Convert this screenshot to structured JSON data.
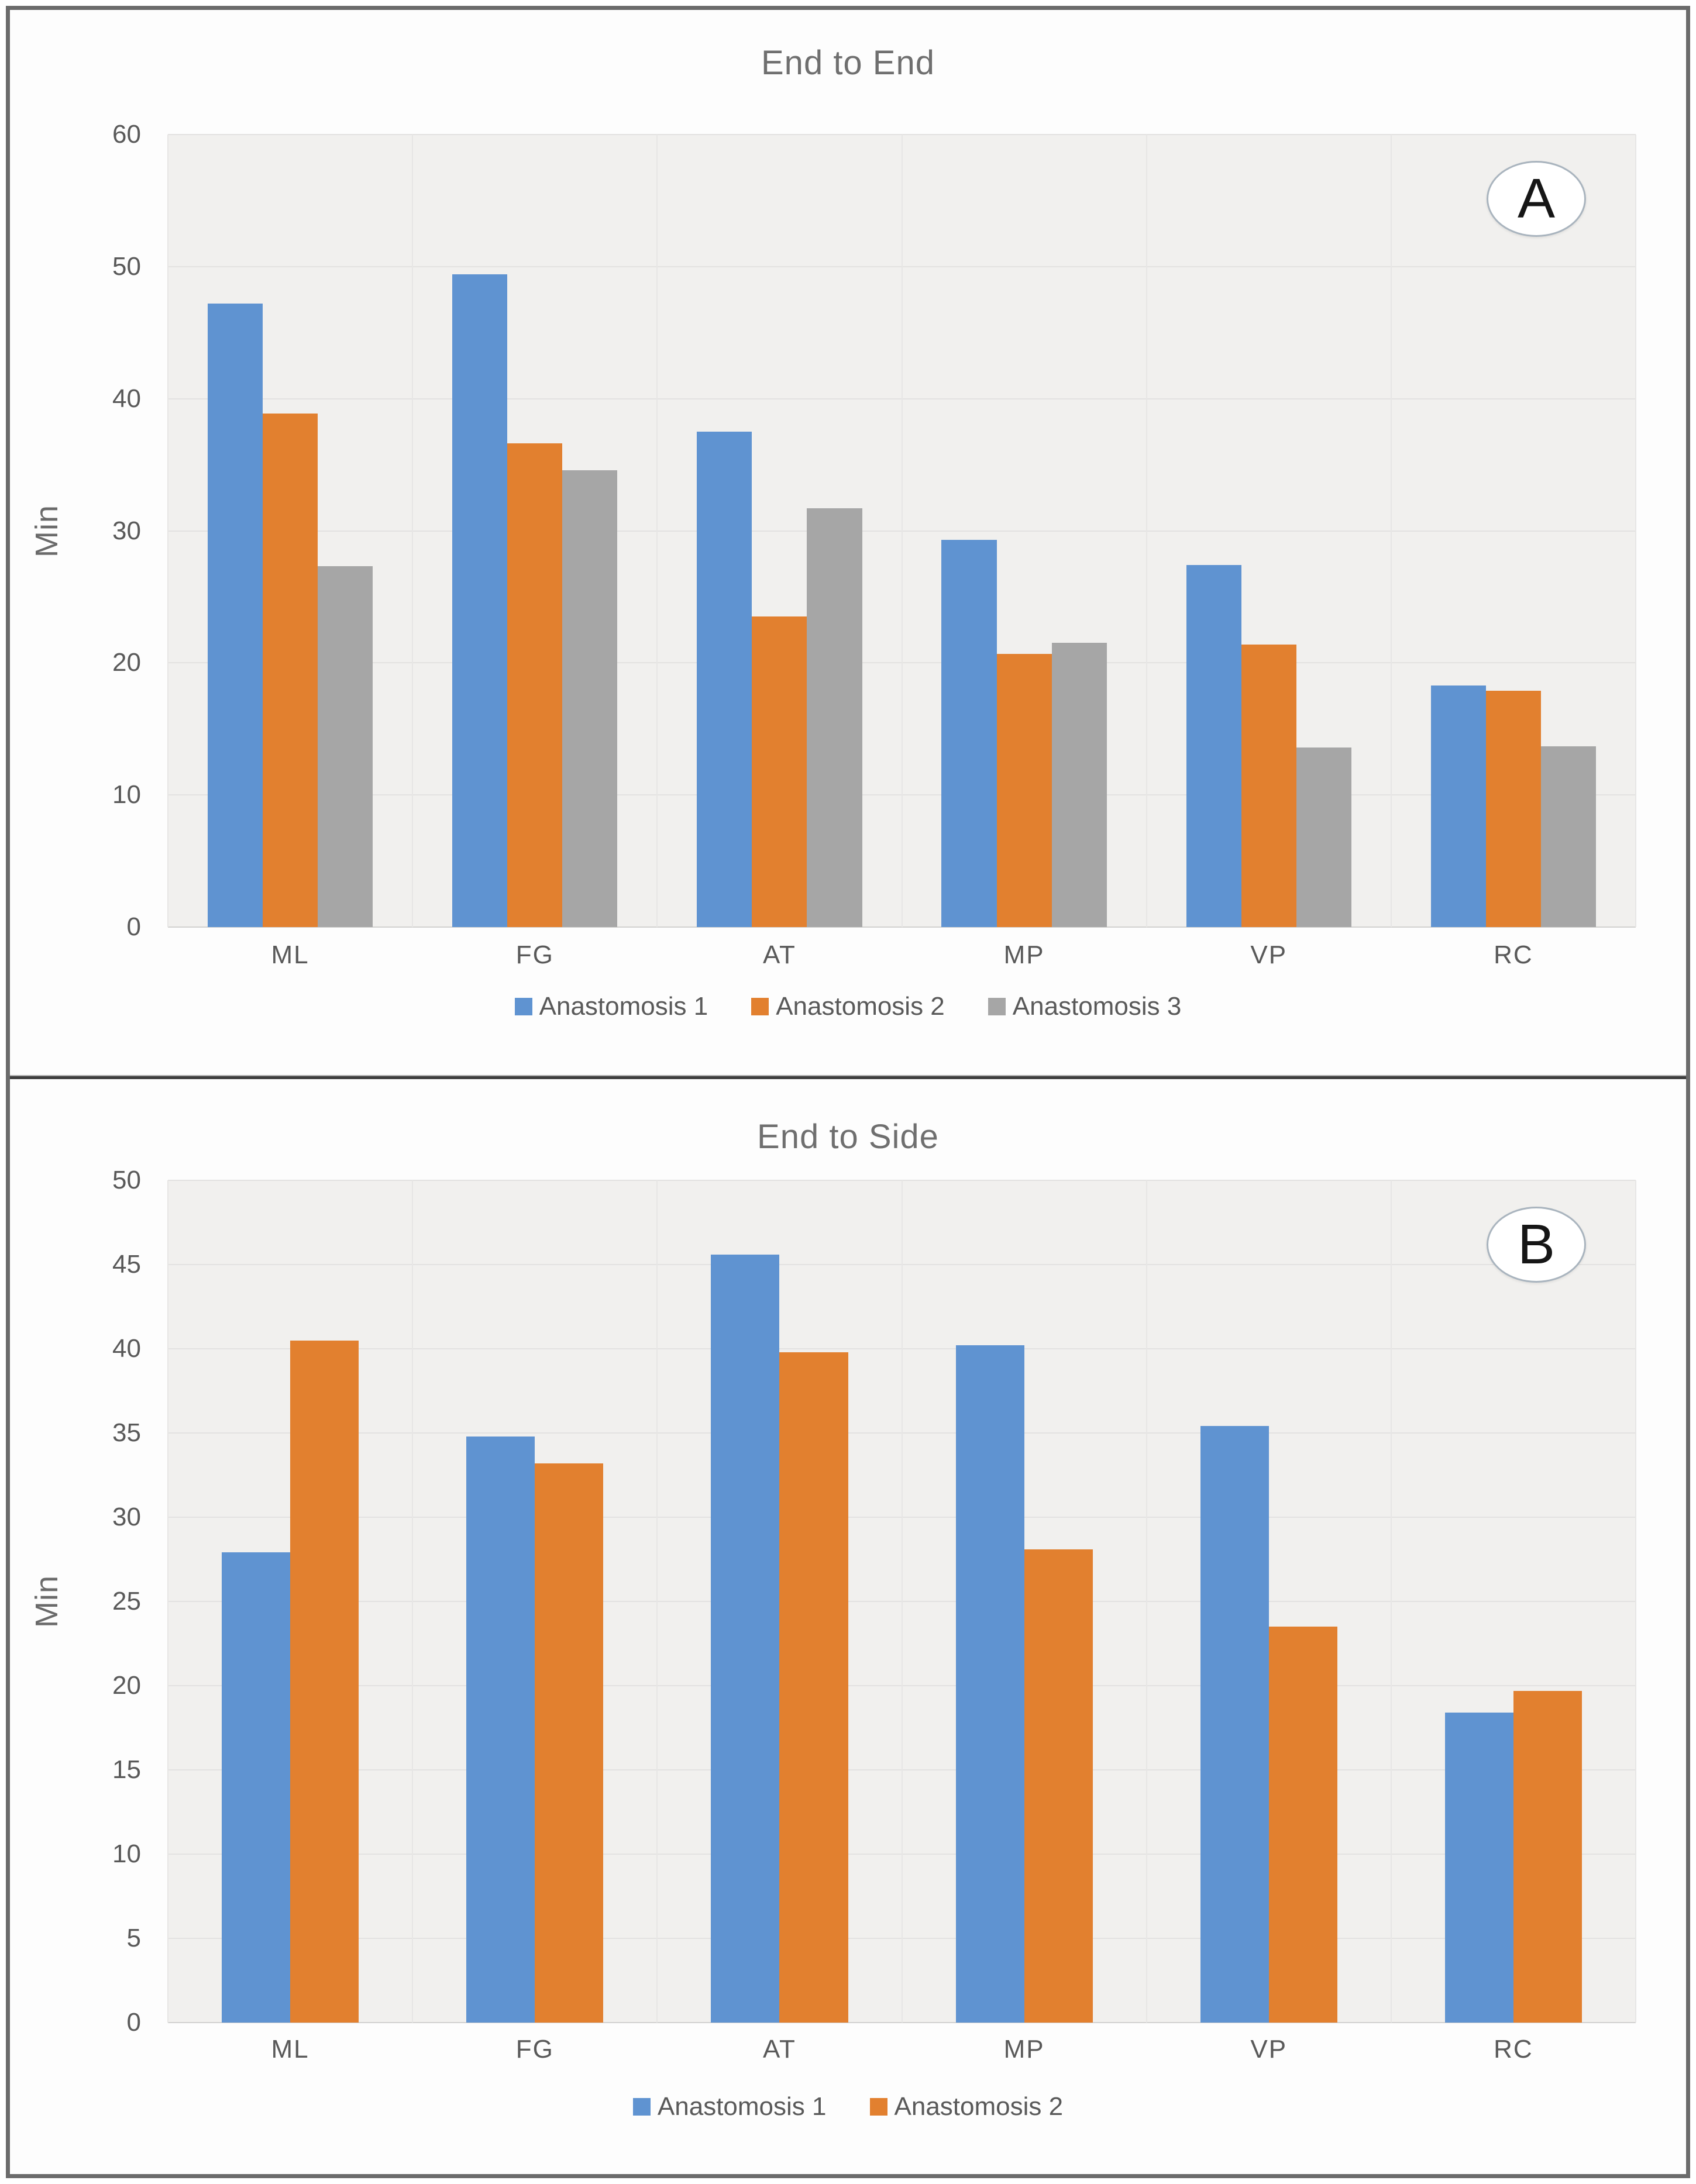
{
  "chart_data": [
    {
      "type": "bar",
      "panel": "top",
      "badge": "A",
      "title": "End to End",
      "xlabel": "",
      "ylabel": "Min",
      "ylim": [
        0,
        60
      ],
      "ystep": 10,
      "yticks": [
        "60",
        "50",
        "40",
        "30",
        "20",
        "10",
        "0"
      ],
      "grid": true,
      "legend_position": "bottom",
      "categories": [
        "ML",
        "FG",
        "AT",
        "MP",
        "VP",
        "RC"
      ],
      "series": [
        {
          "name": "Anastomosis 1",
          "color": "#5F93D1",
          "values": [
            47.2,
            49.4,
            37.5,
            29.3,
            27.4,
            18.3
          ]
        },
        {
          "name": "Anastomosis 2",
          "color": "#E2802F",
          "values": [
            38.9,
            36.6,
            23.5,
            20.7,
            21.4,
            17.9
          ]
        },
        {
          "name": "Anastomosis 3",
          "color": "#A6A6A6",
          "values": [
            27.3,
            34.6,
            31.7,
            21.5,
            13.6,
            13.7
          ]
        }
      ]
    },
    {
      "type": "bar",
      "panel": "bottom",
      "badge": "B",
      "title": "End to Side",
      "xlabel": "",
      "ylabel": "Min",
      "ylim": [
        0,
        50
      ],
      "ystep": 5,
      "yticks": [
        "50",
        "45",
        "40",
        "35",
        "30",
        "25",
        "20",
        "15",
        "10",
        "5",
        "0"
      ],
      "grid": true,
      "legend_position": "bottom",
      "categories": [
        "ML",
        "FG",
        "AT",
        "MP",
        "VP",
        "RC"
      ],
      "series": [
        {
          "name": "Anastomosis 1",
          "color": "#5F93D1",
          "values": [
            27.9,
            34.8,
            45.6,
            40.2,
            35.4,
            18.4
          ]
        },
        {
          "name": "Anastomosis 2",
          "color": "#E2802F",
          "values": [
            40.5,
            33.2,
            39.8,
            28.1,
            23.5,
            19.7
          ]
        }
      ]
    }
  ]
}
